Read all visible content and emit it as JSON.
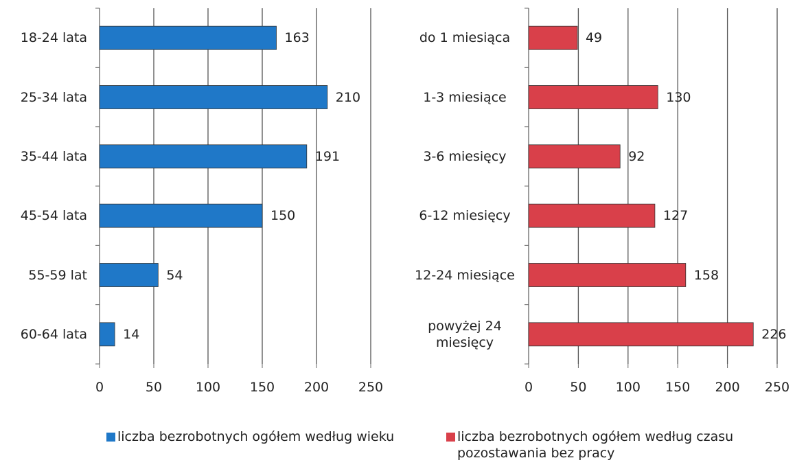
{
  "chart_data": [
    {
      "type": "bar",
      "orientation": "horizontal",
      "categories": [
        "18-24 lata",
        "25-34 lata",
        "35-44 lata",
        "45-54 lata",
        "55-59 lat",
        "60-64 lata"
      ],
      "series": [
        {
          "name": "liczba bezrobotnych ogółem według wieku",
          "color": "#1f78c8",
          "values": [
            163,
            210,
            191,
            150,
            54,
            14
          ]
        }
      ],
      "xlim": [
        0,
        250
      ],
      "xticks": [
        0,
        50,
        100,
        150,
        200,
        250
      ],
      "grid": true,
      "legend": "bottom"
    },
    {
      "type": "bar",
      "orientation": "horizontal",
      "categories": [
        "do 1 miesiąca",
        "1-3 miesiące",
        "3-6 miesięcy",
        "6-12 miesięcy",
        "12-24 miesiące",
        "powyżej 24 miesięcy"
      ],
      "series": [
        {
          "name": "liczba bezrobotnych ogółem według czasu pozostawania bez pracy",
          "color": "#d9404a",
          "values": [
            49,
            130,
            92,
            127,
            158,
            226
          ]
        }
      ],
      "xlim": [
        0,
        250
      ],
      "xticks": [
        0,
        50,
        100,
        150,
        200,
        250
      ],
      "grid": true,
      "legend": "bottom"
    }
  ]
}
